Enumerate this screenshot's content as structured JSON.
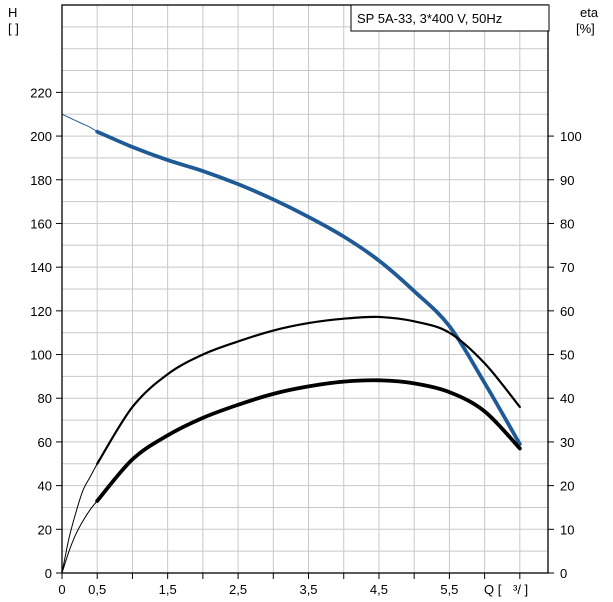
{
  "chart_data": {
    "type": "line",
    "title": "SP 5A-33, 3*400 V, 50Hz",
    "y_left_label_top": "H",
    "y_left_label_unit": "[ ]",
    "y_right_label_top": "eta",
    "y_right_label_unit": "[%]",
    "x_label": "Q [",
    "x_label_unit": "³/  ]",
    "x_ticks": [
      "0",
      "0,5",
      "1,5",
      "2,5",
      "3,5",
      "4,5",
      "5,5"
    ],
    "x_tick_values": [
      0,
      0.5,
      1.5,
      2.5,
      3.5,
      4.5,
      5.5
    ],
    "xlim": [
      0,
      6.9
    ],
    "y_left_ticks": [
      0,
      20,
      40,
      60,
      80,
      100,
      120,
      140,
      160,
      180,
      200,
      220
    ],
    "ylim_left": [
      0,
      260
    ],
    "y_right_ticks": [
      0,
      10,
      20,
      30,
      40,
      50,
      60,
      70,
      80,
      90,
      100
    ],
    "ylim_right": [
      0,
      130
    ],
    "grid": true,
    "series": [
      {
        "role": "head",
        "axis": "left",
        "color": "#1f5a96",
        "thin_x": [
          0,
          0.1,
          0.2,
          0.3,
          0.4,
          0.5
        ],
        "thin_y": [
          210,
          208.5,
          207,
          205.5,
          204,
          202
        ],
        "bold_x": [
          0.5,
          1.0,
          1.5,
          2.0,
          2.5,
          3.0,
          3.5,
          4.0,
          4.5,
          5.0,
          5.5,
          6.0,
          6.5
        ],
        "bold_y": [
          202,
          195,
          189,
          184,
          178,
          171,
          163,
          154,
          143,
          129,
          113,
          87,
          59
        ]
      },
      {
        "role": "efficiency-pump",
        "axis": "right",
        "color": "#000000",
        "thin_x": [
          0,
          0.1,
          0.2,
          0.3,
          0.4,
          0.5
        ],
        "thin_y": [
          0,
          8,
          14,
          19,
          22,
          25
        ],
        "bold_x": [
          0.5,
          1.0,
          1.5,
          2.0,
          2.5,
          3.0,
          3.5,
          4.0,
          4.5,
          5.0,
          5.5,
          6.0,
          6.5
        ],
        "bold_y": [
          25,
          38,
          45.5,
          50,
          53,
          55.5,
          57.2,
          58.2,
          58.6,
          57.6,
          55,
          48,
          38
        ]
      },
      {
        "role": "efficiency-total",
        "axis": "right",
        "color": "#000000",
        "thin_x": [
          0,
          0.1,
          0.2,
          0.3,
          0.4,
          0.5
        ],
        "thin_y": [
          0,
          5,
          9,
          12,
          14.5,
          16.5
        ],
        "bold_x": [
          0.5,
          1.0,
          1.5,
          2.0,
          2.5,
          3.0,
          3.5,
          4.0,
          4.5,
          5.0,
          5.5,
          6.0,
          6.5
        ],
        "bold_y": [
          16.5,
          26,
          31.5,
          35.5,
          38.5,
          41,
          42.7,
          43.8,
          44.1,
          43.4,
          41.4,
          37,
          28.5
        ]
      }
    ]
  }
}
